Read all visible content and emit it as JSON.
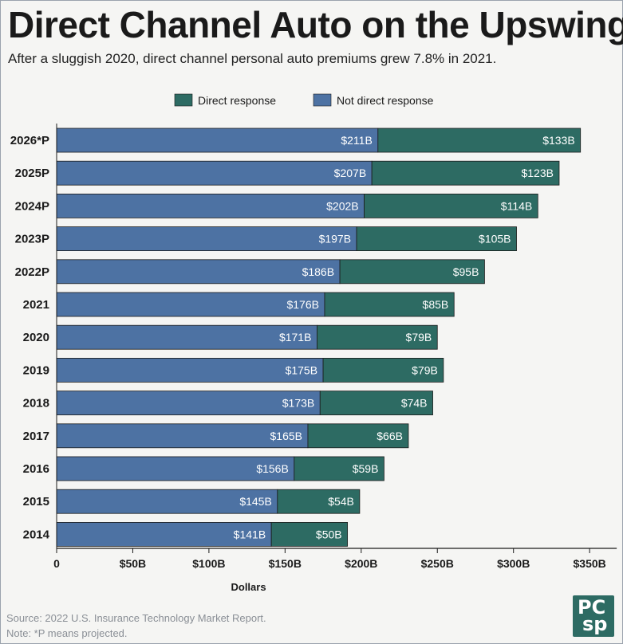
{
  "header": {
    "title": "Direct Channel Auto on the Upswing",
    "subtitle": "After a sluggish 2020, direct channel personal auto premiums grew 7.8% in 2021."
  },
  "footer": {
    "source": "Source: 2022 U.S. Insurance Technology Market Report.",
    "note": "Note: *P means projected.",
    "logo_top": "PC",
    "logo_bottom": "sp"
  },
  "colors": {
    "direct": "#2d6b63",
    "not_direct": "#4d72a3",
    "text_dark": "#1a1a1a"
  },
  "chart_data": {
    "type": "bar",
    "orientation": "horizontal",
    "stacked": true,
    "title": "Direct Channel Auto on the Upswing",
    "subtitle": "After a sluggish 2020, direct channel personal auto premiums grew 7.8% in 2021.",
    "xlabel": "Dollars",
    "ylabel": "",
    "xlim": [
      0,
      350
    ],
    "xticks": [
      0,
      50,
      100,
      150,
      200,
      250,
      300,
      350
    ],
    "xtick_labels": [
      "0",
      "$50B",
      "$100B",
      "$150B",
      "$200B",
      "$250B",
      "$300B",
      "$350B"
    ],
    "categories": [
      "2026*P",
      "2025P",
      "2024P",
      "2023P",
      "2022P",
      "2021",
      "2020",
      "2019",
      "2018",
      "2017",
      "2016",
      "2015",
      "2014"
    ],
    "legend_position": "top-center",
    "series": [
      {
        "name": "Not direct response",
        "color": "#4d72a3",
        "values": [
          211,
          207,
          202,
          197,
          186,
          176,
          171,
          175,
          173,
          165,
          156,
          145,
          141
        ],
        "labels": [
          "$211B",
          "$207B",
          "$202B",
          "$197B",
          "$186B",
          "$176B",
          "$171B",
          "$175B",
          "$173B",
          "$165B",
          "$156B",
          "$145B",
          "$141B"
        ]
      },
      {
        "name": "Direct response",
        "color": "#2d6b63",
        "values": [
          133,
          123,
          114,
          105,
          95,
          85,
          79,
          79,
          74,
          66,
          59,
          54,
          50
        ],
        "labels": [
          "$133B",
          "$123B",
          "$114B",
          "$105B",
          "$95B",
          "$85B",
          "$79B",
          "$79B",
          "$74B",
          "$66B",
          "$59B",
          "$54B",
          "$50B"
        ]
      }
    ],
    "legend_order": [
      "Direct response",
      "Not direct response"
    ],
    "grid": false
  }
}
